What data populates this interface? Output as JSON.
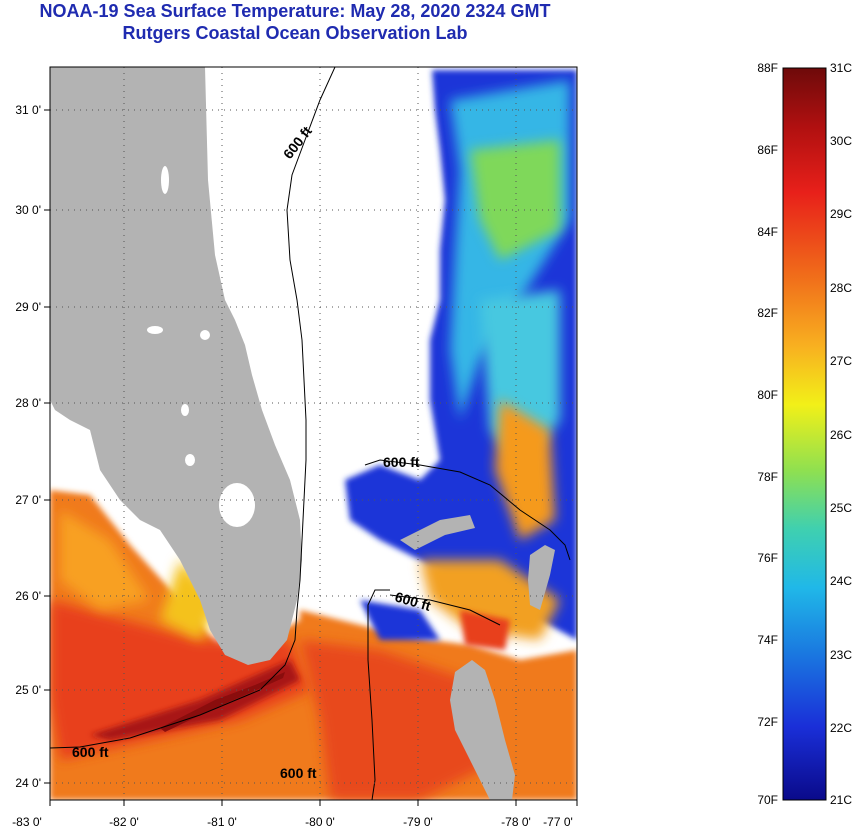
{
  "header": {
    "title": "NOAA-19 Sea Surface Temperature:  May 28, 2020 2324 GMT",
    "subtitle": "Rutgers Coastal Ocean Observation Lab"
  },
  "map": {
    "lat_labels": [
      "31 0'",
      "30 0'",
      "29 0'",
      "28 0'",
      "27 0'",
      "26 0'",
      "25 0'",
      "24 0'"
    ],
    "lon_labels": [
      "-83 0'",
      "-82 0'",
      "-81 0'",
      "-80 0'",
      "-79 0'",
      "-78 0'",
      "-77 0'"
    ],
    "contour_labels": [
      "600 ft",
      "600 ft",
      "600 ft",
      "600 ft",
      "600 ft"
    ],
    "colors": {
      "land": "#b3b3b3",
      "cloud": "#ffffff",
      "warm": "#e8401c",
      "hot": "#8a0d0d",
      "cool": "#0a2fd0",
      "mid": "#37c9d8"
    }
  },
  "legend": {
    "f_labels": [
      "88F",
      "86F",
      "84F",
      "82F",
      "80F",
      "78F",
      "76F",
      "74F",
      "72F",
      "70F"
    ],
    "c_labels": [
      "31C",
      "30C",
      "29C",
      "28C",
      "27C",
      "26C",
      "25C",
      "24C",
      "23C",
      "22C",
      "21C"
    ]
  }
}
